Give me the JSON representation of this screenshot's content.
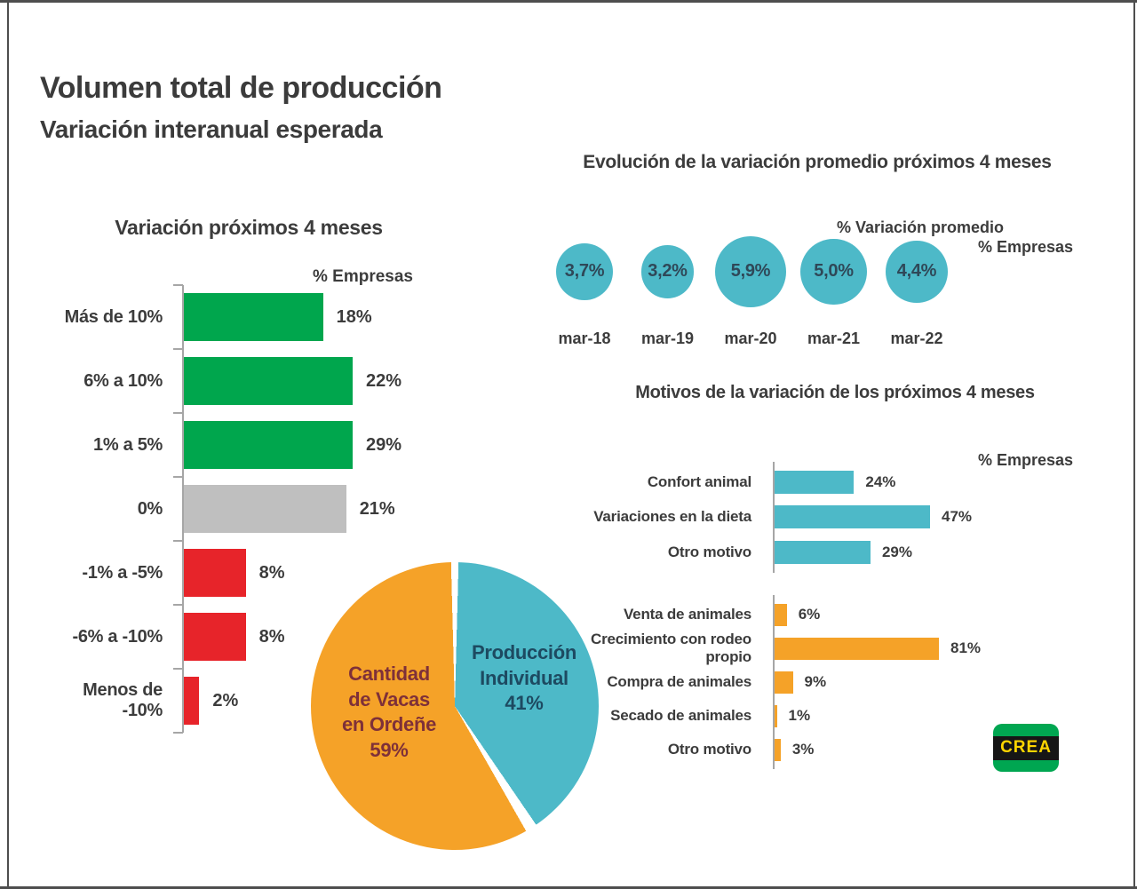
{
  "page": {
    "title": "Volumen total de producción",
    "subtitle": "Variación interanual esperada"
  },
  "colors": {
    "green": "#00a64d",
    "gray": "#bfbfbf",
    "red": "#e7242a",
    "teal": "#4db9c8",
    "orange": "#f5a228",
    "navy": "#1d4a61",
    "maroon": "#7e3039",
    "text": "#3c3c3c"
  },
  "chart_data": [
    {
      "id": "variacion_4meses",
      "type": "bar",
      "orientation": "horizontal",
      "title": "Variación próximos 4 meses",
      "axis_label": "% Empresas",
      "categories": [
        "Más de 10%",
        "6% a 10%",
        "1% a 5%",
        "0%",
        "-1% a -5%",
        "-6% a -10%",
        "Menos de -10%"
      ],
      "values": [
        18,
        22,
        29,
        21,
        8,
        8,
        2
      ],
      "value_labels": [
        "18%",
        "22%",
        "29%",
        "21%",
        "8%",
        "8%",
        "2%"
      ],
      "bar_colors": [
        "green",
        "green",
        "green",
        "gray",
        "red",
        "red",
        "red"
      ],
      "grid": false,
      "xlim": [
        0,
        30
      ]
    },
    {
      "id": "evolucion_promedio",
      "type": "bubble",
      "title": "Evolución de la variación promedio próximos 4 meses",
      "legend_primary": "% Variación promedio",
      "legend_secondary": "% Empresas",
      "categories": [
        "mar-18",
        "mar-19",
        "mar-20",
        "mar-21",
        "mar-22"
      ],
      "values": [
        3.7,
        3.2,
        5.9,
        5.0,
        4.4
      ],
      "value_labels": [
        "3,7%",
        "3,2%",
        "5,9%",
        "5,0%",
        "4,4%"
      ],
      "bubble_color": "teal"
    },
    {
      "id": "composicion_pie",
      "type": "pie",
      "slices": [
        {
          "label": "Cantidad de Vacas en Ordeñe",
          "value": 59,
          "value_label": "59%",
          "color": "orange",
          "text_color": "maroon"
        },
        {
          "label": "Producción Individual",
          "value": 41,
          "value_label": "41%",
          "color": "teal",
          "text_color": "navy"
        }
      ],
      "start_angle_deg": 0,
      "clockwise": true
    },
    {
      "id": "motivos_variacion_teal",
      "type": "bar",
      "orientation": "horizontal",
      "title": "Motivos de la variación de los próximos 4 meses",
      "axis_label": "% Empresas",
      "categories": [
        "Confort animal",
        "Variaciones en la dieta",
        "Otro motivo"
      ],
      "values": [
        24,
        47,
        29
      ],
      "value_labels": [
        "24%",
        "47%",
        "29%"
      ],
      "bar_color": "teal",
      "grid": false
    },
    {
      "id": "motivos_variacion_orange",
      "type": "bar",
      "orientation": "horizontal",
      "categories": [
        "Venta de animales",
        "Crecimiento con rodeo propio",
        "Compra de animales",
        "Secado de animales",
        "Otro motivo"
      ],
      "values": [
        6,
        81,
        9,
        1,
        3
      ],
      "value_labels": [
        "6%",
        "81%",
        "9%",
        "1%",
        "3%"
      ],
      "bar_color": "orange",
      "grid": false
    }
  ],
  "logo": {
    "text": "CREA"
  }
}
